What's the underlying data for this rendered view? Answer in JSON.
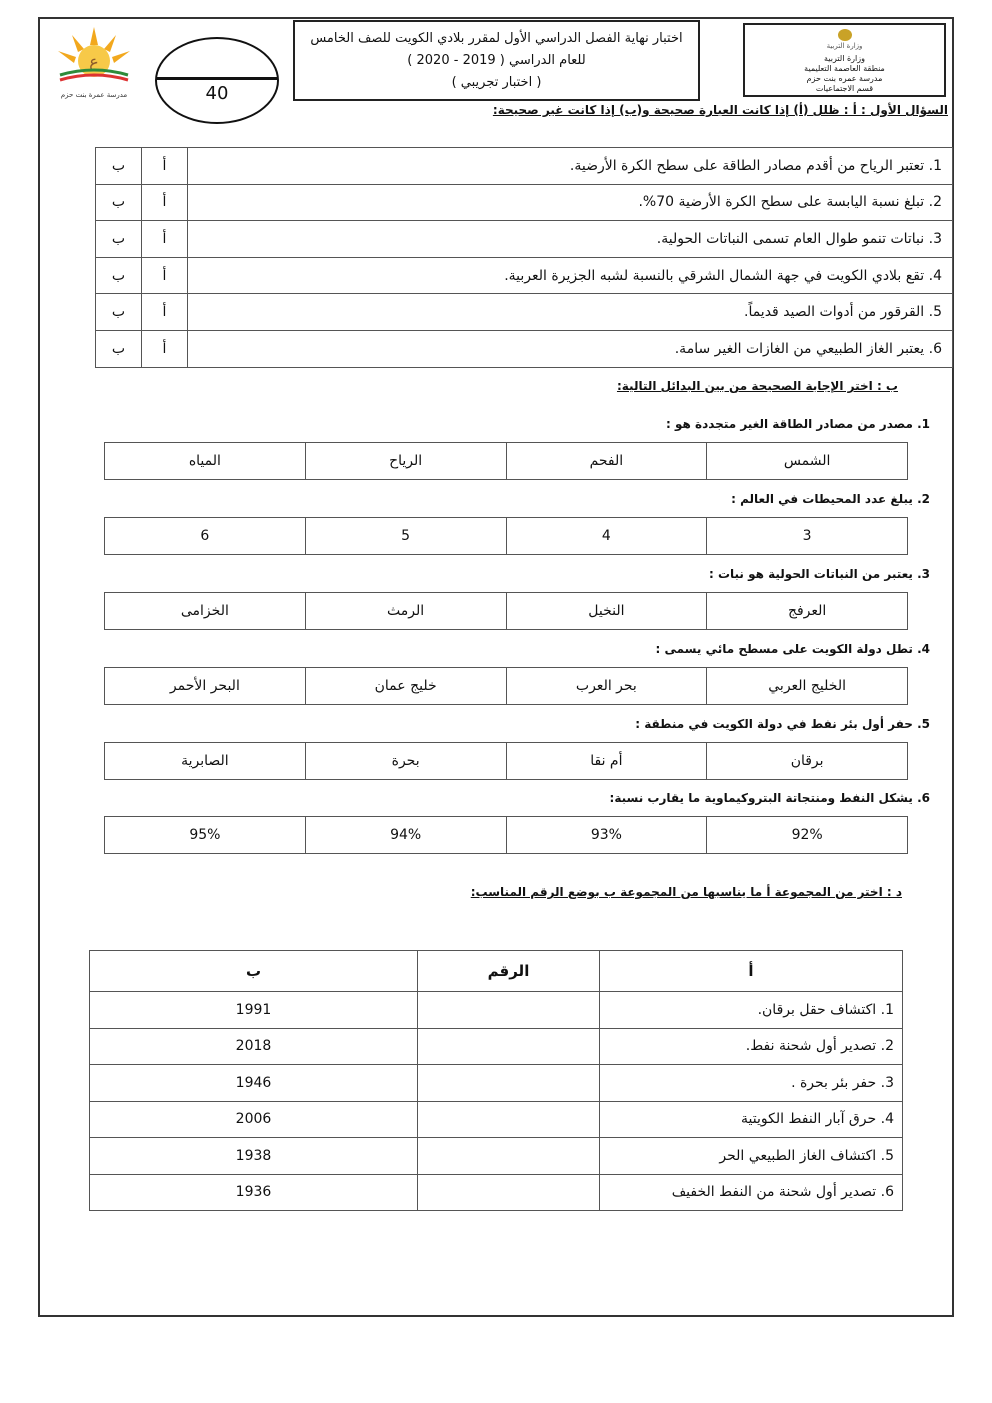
{
  "header": {
    "ministry_lines": [
      "وزارة التربية",
      "منطقة العاصمة التعليمية",
      "مدرسة عمره بنت حزم",
      "قسم الاجتماعيات"
    ],
    "ministry_logo_text": "وزارة التربية",
    "title_lines": [
      "اختبار نهاية الفصل الدراسي الأول لمقرر بلادي الكويت للصف الخامس",
      "للعام الدراسي ( 2019 - 2020 )",
      "( اختبار تجريبي )"
    ],
    "score": "40",
    "school_logo_text": "مدرسة عمرة بنت حزم"
  },
  "q1": {
    "heading": "السؤال الأول : أ : ظلل (أ) إذا كانت العبارة صحيحة و(ب) إذا كانت غير صحيحة:",
    "true_label": "أ",
    "false_label": "ب",
    "items": [
      "1. تعتبر الرياح من أقدم مصادر الطاقة على سطح الكرة الأرضية.",
      "2. تبلغ نسبة اليابسة على سطح الكرة الأرضية 70%.",
      "3. نباتات تنمو طوال العام تسمى النباتات الحولية.",
      "4. تقع بلادي الكويت في جهة الشمال الشرقي بالنسبة لشبه الجزيرة العربية.",
      "5. القرقور من أدوات الصيد قديماً.",
      "6. يعتبر الغاز الطبيعي من الغازات الغير سامة."
    ]
  },
  "q2": {
    "heading": "ب : اختر الإجابة الصحيحة من بين البدائل التالية:",
    "questions": [
      {
        "q": "1. مصدر من مصادر الطاقة الغير متجددة هو :",
        "options": [
          "الشمس",
          "الفحم",
          "الرياح",
          "المياه"
        ]
      },
      {
        "q": "2. يبلغ عدد المحيطات في العالم :",
        "options": [
          "3",
          "4",
          "5",
          "6"
        ]
      },
      {
        "q": "3. يعتبر من النباتات الحولية هو نبات :",
        "options": [
          "العرفج",
          "النخيل",
          "الرمث",
          "الخزامى"
        ]
      },
      {
        "q": "4. تطل دولة الكويت على مسطح مائي يسمى :",
        "options": [
          "الخليج العربي",
          "بحر العرب",
          "خليج عمان",
          "البحر الأحمر"
        ]
      },
      {
        "q": "5. حفر أول بئر نفط في دولة الكويت في منطقة :",
        "options": [
          "برقان",
          "أم نقا",
          "بحرة",
          "الصابرية"
        ]
      },
      {
        "q": "6. يشكل النفط ومنتجاتة البتروكيماوية ما يقارب نسبة:",
        "options": [
          "92%",
          "93%",
          "94%",
          "95%"
        ]
      }
    ]
  },
  "q3": {
    "heading": "د : اختر من المجموعة أ ما يناسبها من المجموعة ب بوضع الرقم المناسب:",
    "headers": [
      "أ",
      "الرقم",
      "ب"
    ],
    "rows": [
      {
        "a": "1. اكتشاف حقل برقان.",
        "b": "1991"
      },
      {
        "a": "2. تصدير أول شحنة نفط.",
        "b": "2018"
      },
      {
        "a": "3. حفر بئر بحرة .",
        "b": "1946"
      },
      {
        "a": "4. حرق آبار النفط الكويتية",
        "b": "2006"
      },
      {
        "a": "5. اكتشاف الغاز الطبيعي الحر",
        "b": "1938"
      },
      {
        "a": "6. تصدير أول شحنة من النفط الخفيف",
        "b": "1936"
      }
    ]
  }
}
